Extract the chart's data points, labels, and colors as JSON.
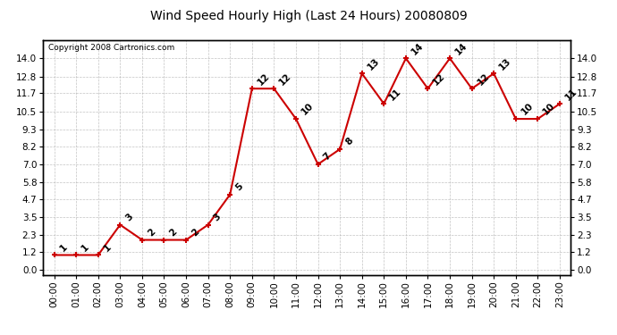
{
  "title": "Wind Speed Hourly High (Last 24 Hours) 20080809",
  "copyright": "Copyright 2008 Cartronics.com",
  "hours": [
    "00:00",
    "01:00",
    "02:00",
    "03:00",
    "04:00",
    "05:00",
    "06:00",
    "07:00",
    "08:00",
    "09:00",
    "10:00",
    "11:00",
    "12:00",
    "13:00",
    "14:00",
    "15:00",
    "16:00",
    "17:00",
    "18:00",
    "19:00",
    "20:00",
    "21:00",
    "22:00",
    "23:00"
  ],
  "values": [
    1,
    1,
    1,
    3,
    2,
    2,
    2,
    3,
    5,
    12,
    12,
    10,
    7,
    8,
    13,
    11,
    14,
    12,
    14,
    12,
    13,
    10,
    10,
    11
  ],
  "line_color": "#cc0000",
  "marker_color": "#cc0000",
  "bg_color": "#ffffff",
  "plot_bg_color": "#ffffff",
  "grid_color": "#aaaaaa",
  "title_color": "#000000",
  "copyright_color": "#000000",
  "yticks": [
    0.0,
    1.2,
    2.3,
    3.5,
    4.7,
    5.8,
    7.0,
    8.2,
    9.3,
    10.5,
    11.7,
    12.8,
    14.0
  ],
  "ylim": [
    -0.3,
    15.2
  ],
  "xlim": [
    -0.5,
    23.5
  ],
  "label_fontsize": 7.5,
  "annotation_fontsize": 7.5,
  "title_fontsize": 10
}
